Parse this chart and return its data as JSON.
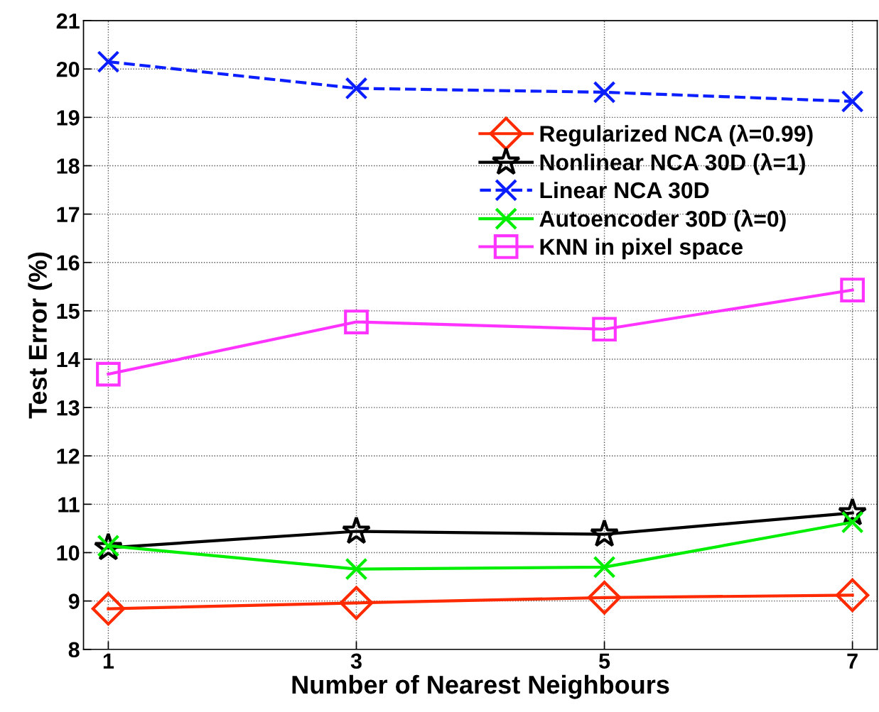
{
  "chart_data": {
    "type": "line",
    "xlabel": "Number of Nearest Neighbours",
    "ylabel": "Test Error (%)",
    "x": [
      1,
      3,
      5,
      7
    ],
    "series": [
      {
        "name": "Regularized NCA (λ=0.99)",
        "color": "#ff2a00",
        "marker": "diamond",
        "line_style": "solid",
        "values": [
          8.84,
          8.96,
          9.07,
          9.12
        ]
      },
      {
        "name": "Nonlinear NCA 30D (λ=1)",
        "color": "#000000",
        "marker": "star",
        "line_style": "solid",
        "values": [
          10.1,
          10.44,
          10.38,
          10.82
        ]
      },
      {
        "name": "Linear NCA 30D",
        "color": "#0a1eff",
        "marker": "cross",
        "line_style": "dashed",
        "values": [
          20.15,
          19.6,
          19.52,
          19.33
        ]
      },
      {
        "name": "Autoencoder 30D (λ=0)",
        "color": "#00ee00",
        "marker": "cross",
        "line_style": "solid",
        "values": [
          10.14,
          9.66,
          9.7,
          10.63
        ]
      },
      {
        "name": "KNN in pixel space",
        "color": "#ff33ff",
        "marker": "square",
        "line_style": "solid",
        "values": [
          13.69,
          14.77,
          14.62,
          15.43
        ]
      }
    ],
    "xlim": [
      0.8,
      7.2
    ],
    "xticks": [
      1,
      3,
      5,
      7
    ],
    "ylim": [
      8,
      21
    ],
    "yticks": [
      8,
      9,
      10,
      11,
      12,
      13,
      14,
      15,
      16,
      17,
      18,
      19,
      20,
      21
    ],
    "grid": true,
    "legend": "top right"
  }
}
